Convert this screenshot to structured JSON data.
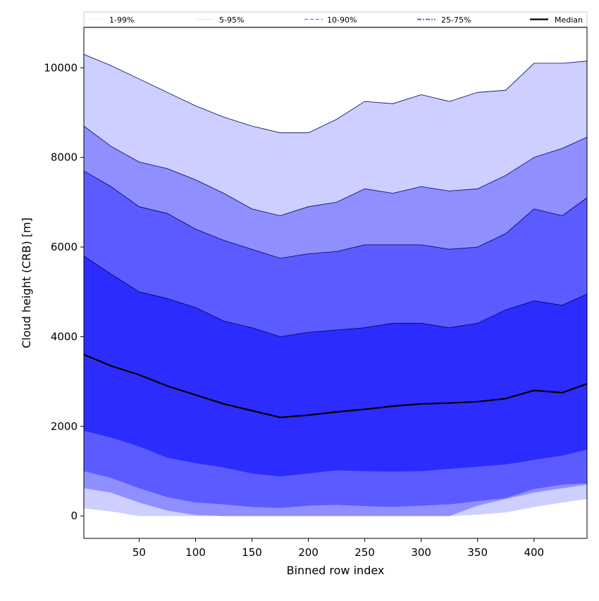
{
  "chart_data": {
    "type": "area",
    "xlabel": "Binned row index",
    "ylabel": "Cloud height (CRB) [m]",
    "xlim": [
      1,
      447
    ],
    "ylim": [
      -500,
      10900
    ],
    "x_ticks": [
      50,
      100,
      150,
      200,
      250,
      300,
      350,
      400
    ],
    "y_ticks": [
      0,
      2000,
      4000,
      6000,
      8000,
      10000
    ],
    "legend_placement": "top, spanning full width",
    "x": [
      1,
      25,
      50,
      75,
      100,
      125,
      150,
      175,
      200,
      225,
      250,
      275,
      300,
      325,
      350,
      375,
      400,
      425,
      447
    ],
    "series": [
      {
        "name": "1-99%",
        "color": "#cccfff",
        "lower": [
          170,
          100,
          0,
          0,
          0,
          0,
          0,
          0,
          0,
          0,
          0,
          0,
          0,
          0,
          30,
          80,
          200,
          300,
          380
        ],
        "upper": [
          10300,
          10050,
          9750,
          9450,
          9150,
          8900,
          8700,
          8550,
          8550,
          8850,
          9250,
          9200,
          9400,
          9250,
          9450,
          9500,
          10100,
          10100,
          10150
        ]
      },
      {
        "name": "5-95%",
        "color": "#8f8fff",
        "lower": [
          620,
          520,
          300,
          120,
          20,
          0,
          0,
          0,
          0,
          0,
          0,
          0,
          0,
          0,
          230,
          380,
          520,
          620,
          700
        ],
        "upper": [
          8700,
          8250,
          7900,
          7750,
          7500,
          7200,
          6850,
          6700,
          6900,
          7000,
          7300,
          7200,
          7350,
          7250,
          7300,
          7600,
          8000,
          8200,
          8450
        ]
      },
      {
        "name": "10-90%",
        "color": "#5b5bff",
        "lower": [
          1000,
          850,
          620,
          420,
          300,
          260,
          200,
          180,
          230,
          250,
          220,
          200,
          230,
          260,
          330,
          400,
          600,
          700,
          730
        ],
        "upper": [
          7700,
          7350,
          6900,
          6750,
          6400,
          6150,
          5950,
          5750,
          5850,
          5900,
          6050,
          6050,
          6050,
          5950,
          6000,
          6300,
          6850,
          6700,
          7100
        ]
      },
      {
        "name": "25-75%",
        "color": "#2c2cff",
        "lower": [
          1900,
          1750,
          1550,
          1300,
          1180,
          1080,
          950,
          880,
          950,
          1020,
          1000,
          990,
          1000,
          1050,
          1100,
          1150,
          1250,
          1350,
          1480
        ],
        "upper": [
          5800,
          5400,
          5000,
          4850,
          4650,
          4350,
          4200,
          4000,
          4100,
          4150,
          4200,
          4300,
          4300,
          4200,
          4300,
          4600,
          4800,
          4700,
          4950
        ]
      },
      {
        "name": "Median",
        "color": "#000000",
        "values": [
          3600,
          3350,
          3150,
          2900,
          2700,
          2500,
          2350,
          2200,
          2250,
          2320,
          2380,
          2450,
          2500,
          2520,
          2550,
          2620,
          2800,
          2750,
          2950
        ]
      }
    ]
  }
}
